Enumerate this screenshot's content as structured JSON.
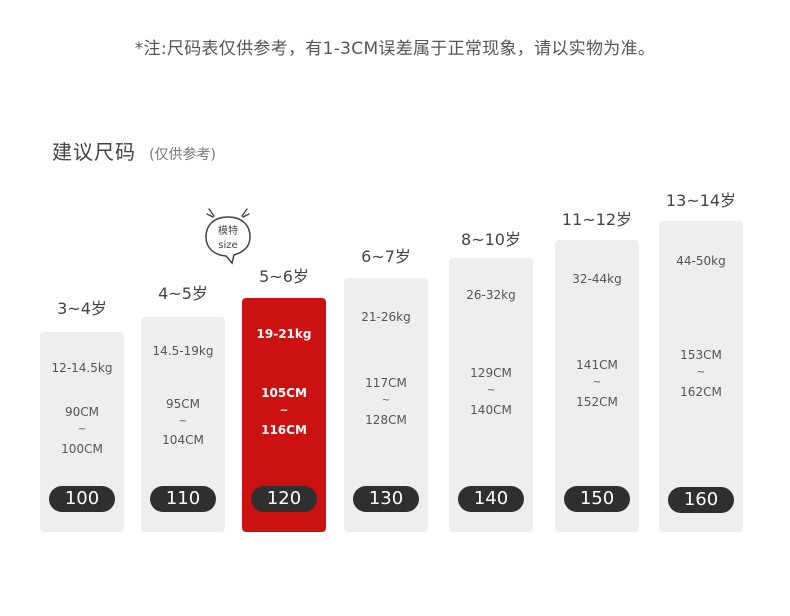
{
  "note": "*注:尺码表仅供参考，有1-3CM误差属于正常现象，请以实物为准。",
  "heading": {
    "title": "建议尺码",
    "subtitle": "(仅供参考)"
  },
  "model_tag": {
    "line1": "模特",
    "line2": "size"
  },
  "colors": {
    "card": "#eeeeee",
    "active": "#cc1111",
    "pill": "#2f2f2f"
  },
  "sizes": [
    {
      "age": "3~4岁",
      "weight": "12-14.5kg",
      "height_from": "90CM",
      "height_sep": "~",
      "height_to": "100CM",
      "size": "100"
    },
    {
      "age": "4~5岁",
      "weight": "14.5-19kg",
      "height_from": "95CM",
      "height_sep": "~",
      "height_to": "104CM",
      "size": "110"
    },
    {
      "age": "5~6岁",
      "weight": "19-21kg",
      "height_from": "105CM",
      "height_sep": "~",
      "height_to": "116CM",
      "size": "120"
    },
    {
      "age": "6~7岁",
      "weight": "21-26kg",
      "height_from": "117CM",
      "height_sep": "~",
      "height_to": "128CM",
      "size": "130"
    },
    {
      "age": "8~10岁",
      "weight": "26-32kg",
      "height_from": "129CM",
      "height_sep": "~",
      "height_to": "140CM",
      "size": "140"
    },
    {
      "age": "11~12岁",
      "weight": "32-44kg",
      "height_from": "141CM",
      "height_sep": "~",
      "height_to": "152CM",
      "size": "150"
    },
    {
      "age": "13~14岁",
      "weight": "44-50kg",
      "height_from": "153CM",
      "height_sep": "~",
      "height_to": "162CM",
      "size": "160"
    }
  ]
}
